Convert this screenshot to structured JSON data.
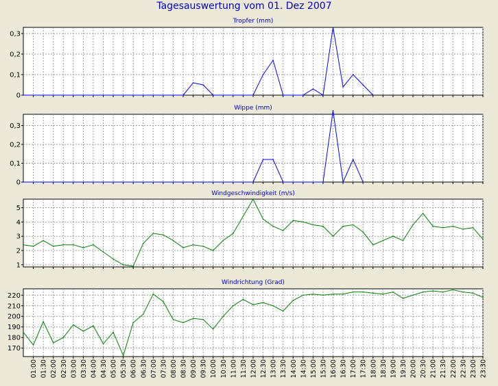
{
  "title": "Tagesauswertung vom 01. Dez 2007",
  "x_ticks": [
    "01:00",
    "01:30",
    "02:00",
    "02:30",
    "03:00",
    "03:30",
    "04:00",
    "04:30",
    "05:00",
    "05:30",
    "06:00",
    "06:30",
    "07:00",
    "07:30",
    "08:00",
    "08:30",
    "09:00",
    "09:30",
    "10:00",
    "10:30",
    "11:00",
    "11:30",
    "12:00",
    "12:30",
    "13:00",
    "13:30",
    "14:00",
    "14:30",
    "15:00",
    "15:30",
    "16:00",
    "16:30",
    "17:00",
    "17:30",
    "18:00",
    "18:30",
    "19:00",
    "19:30",
    "20:00",
    "20:30",
    "21:00",
    "21:30",
    "22:00",
    "22:30",
    "23:00",
    "23:30"
  ],
  "colors": {
    "blue": "#0000ff",
    "green": "#008000",
    "title": "#0000cc",
    "panel": "#ffffff",
    "background": "#ece9d8"
  },
  "chart_data": [
    {
      "type": "line",
      "title": "Tropfer (mm)",
      "color": "#0000ff",
      "ylim": [
        0,
        0.33
      ],
      "yticks": [
        0,
        0.1,
        0.2,
        0.3
      ],
      "ytick_labels": [
        "0",
        "0,1",
        "0,2",
        "0,3"
      ],
      "grid": true,
      "x": [
        "00:30",
        "08:30",
        "09:00",
        "09:30",
        "10:00",
        "12:00",
        "12:30",
        "13:00",
        "13:30",
        "14:30",
        "15:00",
        "15:30",
        "16:00",
        "16:30",
        "17:00",
        "17:30",
        "18:00"
      ],
      "values": [
        0,
        0,
        0.06,
        0.05,
        0,
        0,
        0.1,
        0.17,
        0,
        0,
        0.03,
        0,
        0.33,
        0.04,
        0.1,
        0.05,
        0
      ]
    },
    {
      "type": "line",
      "title": "Wippe (mm)",
      "color": "#0000ff",
      "ylim": [
        0,
        0.36
      ],
      "yticks": [
        0,
        0.1,
        0.2,
        0.3
      ],
      "ytick_labels": [
        "0",
        "0,1",
        "0,2",
        "0,3"
      ],
      "grid": true,
      "x": [
        "00:30",
        "12:00",
        "12:30",
        "13:00",
        "13:30",
        "15:30",
        "16:00",
        "16:30",
        "17:00",
        "17:30"
      ],
      "values": [
        0,
        0,
        0.12,
        0.12,
        0,
        0,
        0.38,
        0,
        0.12,
        0
      ]
    },
    {
      "type": "line",
      "title": "Windgeschwindigkeit (m/s)",
      "color": "#008000",
      "ylim": [
        0.85,
        5.6
      ],
      "yticks": [
        1,
        2,
        3,
        4,
        5
      ],
      "ytick_labels": [
        "1",
        "2",
        "3",
        "4",
        "5"
      ],
      "grid": true,
      "x": [
        "00:30",
        "01:00",
        "01:30",
        "02:00",
        "02:30",
        "03:00",
        "03:30",
        "04:00",
        "04:30",
        "05:00",
        "05:30",
        "06:00",
        "06:30",
        "07:00",
        "07:30",
        "08:00",
        "08:30",
        "09:00",
        "09:30",
        "10:00",
        "10:30",
        "11:00",
        "11:30",
        "12:00",
        "12:30",
        "13:00",
        "13:30",
        "14:00",
        "14:30",
        "15:00",
        "15:30",
        "16:00",
        "16:30",
        "17:00",
        "17:30",
        "18:00",
        "18:30",
        "19:00",
        "19:30",
        "20:00",
        "20:30",
        "21:00",
        "21:30",
        "22:00",
        "22:30",
        "23:00",
        "23:30"
      ],
      "values": [
        2.4,
        2.3,
        2.7,
        2.3,
        2.4,
        2.4,
        2.2,
        2.4,
        1.9,
        1.4,
        1.0,
        0.9,
        2.5,
        3.2,
        3.1,
        2.7,
        2.2,
        2.4,
        2.3,
        2.0,
        2.7,
        3.2,
        4.4,
        5.6,
        4.2,
        3.7,
        3.4,
        4.1,
        4.0,
        3.8,
        3.7,
        3.0,
        3.7,
        3.8,
        3.3,
        2.4,
        2.7,
        3.0,
        2.7,
        3.8,
        4.6,
        3.7,
        3.6,
        3.7,
        3.5,
        3.6,
        2.8
      ]
    },
    {
      "type": "line",
      "title": "Windrichtung (Grad)",
      "color": "#008000",
      "ylim": [
        162,
        226
      ],
      "yticks": [
        170,
        180,
        190,
        200,
        210,
        220
      ],
      "ytick_labels": [
        "170",
        "180",
        "190",
        "200",
        "210",
        "220"
      ],
      "grid": true,
      "x": [
        "00:30",
        "01:00",
        "01:30",
        "02:00",
        "02:30",
        "03:00",
        "03:30",
        "04:00",
        "04:30",
        "05:00",
        "05:30",
        "06:00",
        "06:30",
        "07:00",
        "07:30",
        "08:00",
        "08:30",
        "09:00",
        "09:30",
        "10:00",
        "10:30",
        "11:00",
        "11:30",
        "12:00",
        "12:30",
        "13:00",
        "13:30",
        "14:00",
        "14:30",
        "15:00",
        "15:30",
        "16:00",
        "16:30",
        "17:00",
        "17:30",
        "18:00",
        "18:30",
        "19:00",
        "19:30",
        "20:00",
        "20:30",
        "21:00",
        "21:30",
        "22:00",
        "22:30",
        "23:00",
        "23:30"
      ],
      "values": [
        185,
        173,
        195,
        175,
        180,
        192,
        186,
        191,
        174,
        185,
        163,
        194,
        202,
        221,
        214,
        197,
        194,
        198,
        197,
        188,
        200,
        210,
        216,
        211,
        213,
        210,
        205,
        215,
        220,
        221,
        220,
        221,
        221,
        223,
        223,
        222,
        221,
        223,
        217,
        220,
        223,
        224,
        223,
        225,
        223,
        222,
        218
      ]
    }
  ]
}
